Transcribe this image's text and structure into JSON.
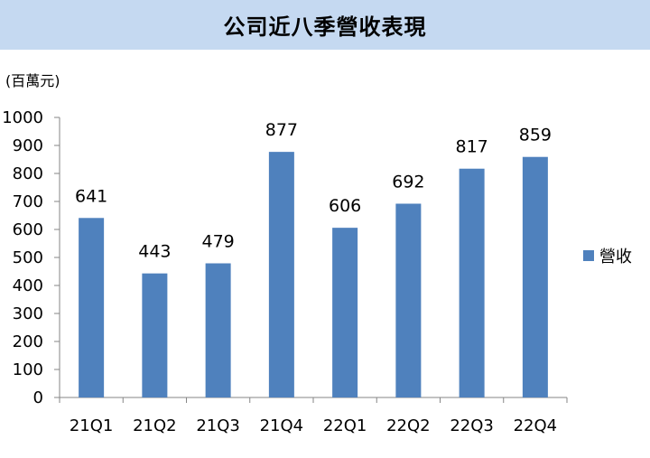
{
  "chart_data": {
    "type": "bar",
    "title": "公司近八季營收表現",
    "unit": "(百萬元)",
    "categories": [
      "21Q1",
      "21Q2",
      "21Q3",
      "21Q4",
      "22Q1",
      "22Q2",
      "22Q3",
      "22Q4"
    ],
    "series": [
      {
        "name": "營收",
        "values": [
          641,
          443,
          479,
          877,
          606,
          692,
          817,
          859
        ],
        "color": "#4f81bd"
      }
    ],
    "ylim": [
      0,
      1000
    ],
    "yticks": [
      0,
      100,
      200,
      300,
      400,
      500,
      600,
      700,
      800,
      900,
      1000
    ],
    "grid": false,
    "legend_position": "right"
  }
}
